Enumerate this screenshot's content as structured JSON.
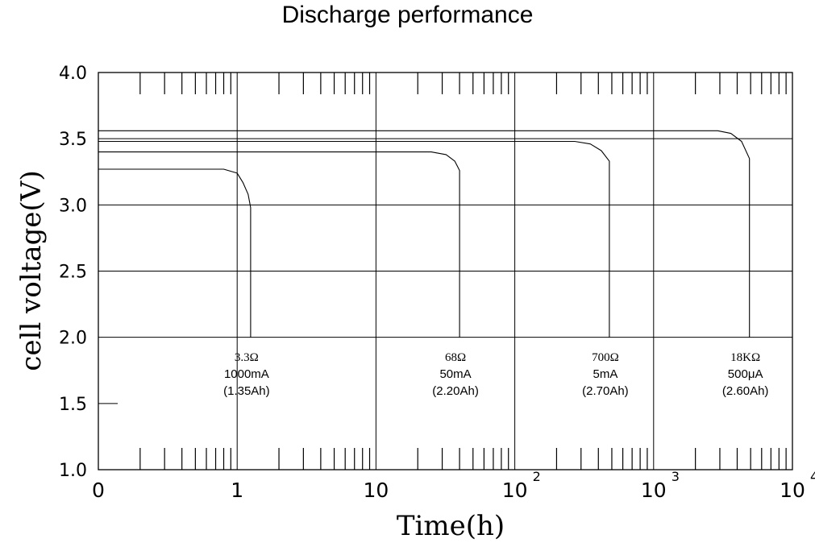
{
  "chart_data": {
    "type": "line",
    "title": "Discharge performance",
    "xlabel": "Time(h)",
    "ylabel": "cell voltage(V)",
    "x_scale": "log",
    "xlim": [
      0.1,
      10000
    ],
    "ylim": [
      1.0,
      4.0
    ],
    "x_ticks": [
      {
        "value": 0.1,
        "label": "0",
        "sup": ""
      },
      {
        "value": 1,
        "label": "1",
        "sup": ""
      },
      {
        "value": 10,
        "label": "10",
        "sup": ""
      },
      {
        "value": 100,
        "label": "10",
        "sup": "2"
      },
      {
        "value": 1000,
        "label": "10",
        "sup": "3"
      },
      {
        "value": 10000,
        "label": "10",
        "sup": "4"
      }
    ],
    "y_ticks": [
      {
        "value": 4.0,
        "label": "4.0"
      },
      {
        "value": 3.5,
        "label": "3.5"
      },
      {
        "value": 3.0,
        "label": "3.0"
      },
      {
        "value": 2.5,
        "label": "2.5"
      },
      {
        "value": 2.0,
        "label": "2.0"
      },
      {
        "value": 1.5,
        "label": "1.5"
      },
      {
        "value": 1.0,
        "label": "1.0"
      }
    ],
    "grid": true,
    "series": [
      {
        "x": [
          0.1,
          0.8,
          1.0,
          1.1,
          1.2,
          1.25,
          1.25
        ],
        "y": [
          3.27,
          3.27,
          3.24,
          3.17,
          3.08,
          2.98,
          2.0
        ],
        "annotation": [
          "3.3Ω",
          "1000mA",
          "(1.35Ah)"
        ]
      },
      {
        "x": [
          0.1,
          25,
          32,
          37,
          40,
          40
        ],
        "y": [
          3.4,
          3.4,
          3.38,
          3.33,
          3.26,
          2.0
        ],
        "annotation": [
          "68Ω",
          "50mA",
          "(2.20Ah)"
        ]
      },
      {
        "x": [
          0.1,
          270,
          350,
          420,
          480,
          480
        ],
        "y": [
          3.48,
          3.48,
          3.46,
          3.41,
          3.33,
          2.0
        ],
        "annotation": [
          "700Ω",
          "5mA",
          "(2.70Ah)"
        ]
      },
      {
        "x": [
          0.1,
          2900,
          3600,
          4300,
          4900,
          4900
        ],
        "y": [
          3.56,
          3.56,
          3.54,
          3.48,
          3.35,
          2.0
        ],
        "annotation": [
          "18KΩ",
          "500μA",
          "(2.60Ah)"
        ]
      }
    ]
  }
}
